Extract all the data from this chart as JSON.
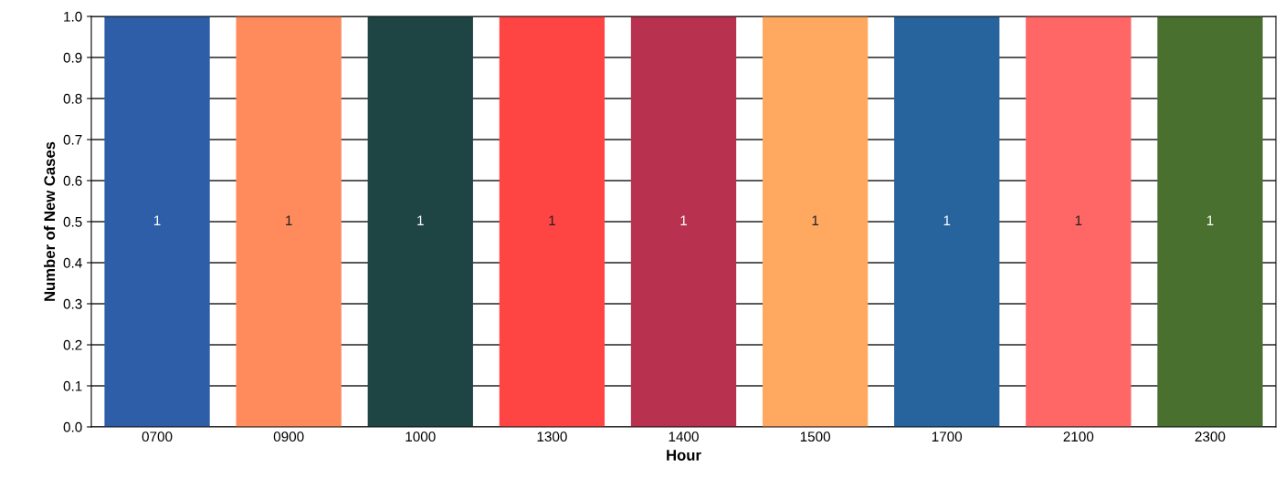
{
  "chart_data": {
    "type": "bar",
    "xlabel": "Hour",
    "ylabel": "Number of New Cases",
    "categories": [
      "0700",
      "0900",
      "1000",
      "1300",
      "1400",
      "1500",
      "1700",
      "2100",
      "2300"
    ],
    "values": [
      1,
      1,
      1,
      1,
      1,
      1,
      1,
      1,
      1
    ],
    "colors": [
      "#2e5ea8",
      "#ff8a5c",
      "#1f4444",
      "#ff4444",
      "#b8314f",
      "#ffa860",
      "#27639c",
      "#ff6666",
      "#4a7030"
    ],
    "ylim": [
      0,
      1
    ],
    "yticks": [
      {
        "value": 0,
        "label": "0.0"
      },
      0.1,
      0.2,
      0.3,
      0.4,
      0.5,
      0.6,
      0.7,
      0.8,
      0.9,
      {
        "value": 1,
        "label": "1.0"
      }
    ],
    "grid": "y",
    "data_labels": true
  }
}
